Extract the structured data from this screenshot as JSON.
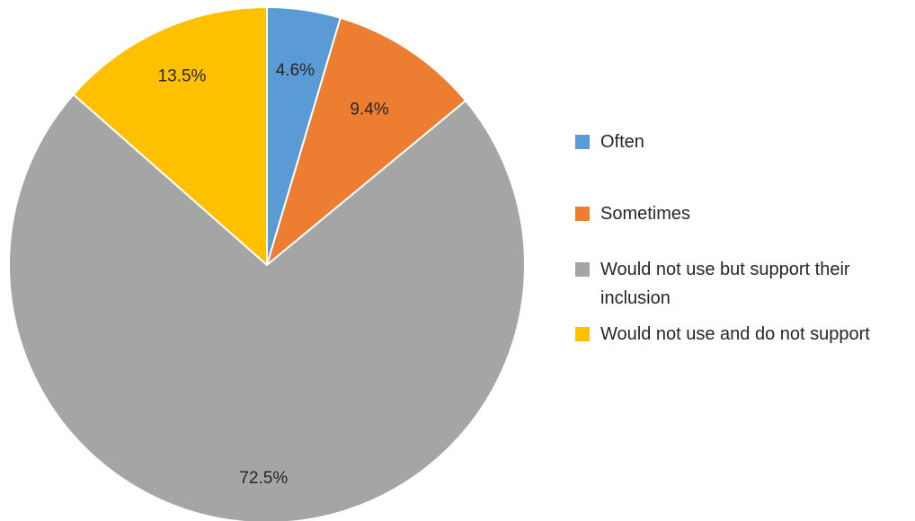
{
  "chart_data": {
    "type": "pie",
    "labels": [
      "Often",
      "Sometimes",
      "Would not use but support their inclusion",
      "Would not use and do not support"
    ],
    "values": [
      4.6,
      9.4,
      72.5,
      13.5
    ],
    "value_labels": [
      "4.6%",
      "9.4%",
      "72.5%",
      "13.5%"
    ],
    "colors": [
      "#5B9BD5",
      "#ED7D31",
      "#A5A5A5",
      "#FFC000"
    ],
    "start_angle": "12 o'clock",
    "direction": "clockwise",
    "legend_position": "right",
    "title": ""
  }
}
